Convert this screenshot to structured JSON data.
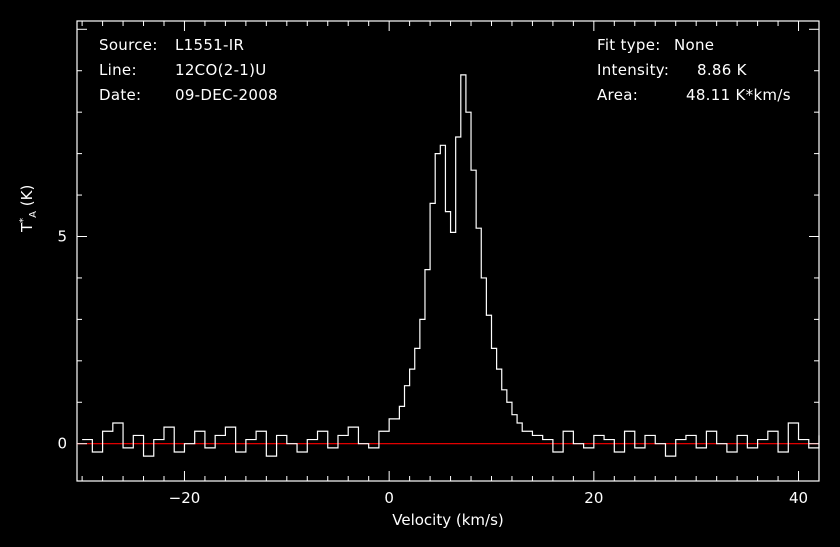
{
  "header_left": {
    "source_label": "Source:",
    "source_value": "L1551-IR",
    "line_label": "Line:",
    "line_value": "12CO(2-1)U",
    "date_label": "Date:",
    "date_value": "09-DEC-2008"
  },
  "header_right": {
    "fit_label": "Fit type:",
    "fit_value": "None",
    "intensity_label": "Intensity:",
    "intensity_value": "8.86 K",
    "area_label": "Area:",
    "area_value": "48.11 K*km/s"
  },
  "chart_data": {
    "type": "line",
    "xlabel": "Velocity (km/s)",
    "ylabel": "T*A (K)",
    "xlim": [
      -30.5,
      42
    ],
    "ylim": [
      -0.9,
      10.2
    ],
    "xticks": [
      -20,
      0,
      20,
      40
    ],
    "xtick_labels": [
      "−20",
      "0",
      "20",
      "40"
    ],
    "yticks": [
      0,
      5
    ],
    "ytick_labels": [
      "0",
      "5"
    ],
    "baseline": 0,
    "colors": {
      "spectrum": "#ffffff",
      "baseline": "#ff0000",
      "frame": "#ffffff",
      "background": "#000000"
    },
    "series": [
      {
        "style": "steps",
        "x": [
          -30,
          -29,
          -28,
          -27,
          -26,
          -25,
          -24,
          -23,
          -22,
          -21,
          -20,
          -19,
          -18,
          -17,
          -16,
          -15,
          -14,
          -13,
          -12,
          -11,
          -10,
          -9,
          -8,
          -7,
          -6,
          -5,
          -4,
          -3,
          -2,
          -1,
          0,
          1,
          1.5,
          2,
          2.5,
          3,
          3.5,
          4,
          4.5,
          5,
          5.5,
          6,
          6.5,
          7,
          7.5,
          8,
          8.5,
          9,
          9.5,
          10,
          10.5,
          11,
          11.5,
          12,
          12.5,
          13,
          14,
          15,
          16,
          17,
          18,
          19,
          20,
          21,
          22,
          23,
          24,
          25,
          26,
          27,
          28,
          29,
          30,
          31,
          32,
          33,
          34,
          35,
          36,
          37,
          38,
          39,
          40,
          41,
          42
        ],
        "y": [
          0.1,
          -0.2,
          0.3,
          0.5,
          -0.1,
          0.2,
          -0.3,
          0.1,
          0.4,
          -0.2,
          0.0,
          0.3,
          -0.1,
          0.2,
          0.4,
          -0.2,
          0.1,
          0.3,
          -0.3,
          0.2,
          0.0,
          -0.2,
          0.1,
          0.3,
          -0.1,
          0.2,
          0.4,
          0.0,
          -0.1,
          0.3,
          0.6,
          0.9,
          1.4,
          1.8,
          2.3,
          3.0,
          4.2,
          5.8,
          7.0,
          7.2,
          5.6,
          5.1,
          7.4,
          8.9,
          8.0,
          6.6,
          5.2,
          4.0,
          3.1,
          2.3,
          1.8,
          1.3,
          1.0,
          0.7,
          0.5,
          0.3,
          0.2,
          0.1,
          -0.2,
          0.3,
          0.0,
          -0.1,
          0.2,
          0.1,
          -0.2,
          0.3,
          -0.1,
          0.2,
          0.0,
          -0.3,
          0.1,
          0.2,
          -0.1,
          0.3,
          0.0,
          -0.2,
          0.2,
          -0.1,
          0.1,
          0.3,
          -0.2,
          0.5,
          0.1,
          -0.1,
          0.2
        ]
      }
    ]
  }
}
